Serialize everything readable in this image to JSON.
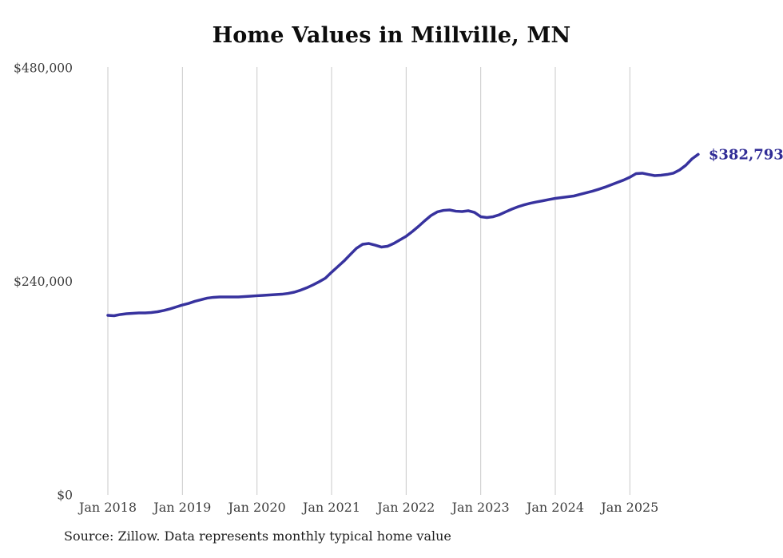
{
  "page": {
    "background": "#ffffff"
  },
  "chart": {
    "title": "Home Values in Millville, MN",
    "source": "Source: Zillow. Data represents monthly typical home value",
    "end_label": "$382,793"
  },
  "chart_data": {
    "type": "line",
    "title": "Home Values in Millville, MN",
    "series_name": "Monthly typical home value",
    "xlabel": "",
    "ylabel": "",
    "ylim": [
      0,
      480000
    ],
    "grid": "vertical-only",
    "legend": "none",
    "line_color": "#37329e",
    "grid_color": "#c9c9c9",
    "axis_text_color": "#3d3d3d",
    "end_label": "$382,793",
    "end_label_color": "#312d96",
    "last_value": 382793,
    "yticks": [
      {
        "value": 0,
        "label": "$0"
      },
      {
        "value": 240000,
        "label": "$240,000"
      },
      {
        "value": 480000,
        "label": "$480,000"
      }
    ],
    "xticks": [
      {
        "month_index": 0,
        "label": "Jan 2018"
      },
      {
        "month_index": 12,
        "label": "Jan 2019"
      },
      {
        "month_index": 24,
        "label": "Jan 2020"
      },
      {
        "month_index": 36,
        "label": "Jan 2021"
      },
      {
        "month_index": 48,
        "label": "Jan 2022"
      },
      {
        "month_index": 60,
        "label": "Jan 2023"
      },
      {
        "month_index": 72,
        "label": "Jan 2024"
      },
      {
        "month_index": 84,
        "label": "Jan 2025"
      }
    ],
    "months": [
      "Jan 2018",
      "Feb 2018",
      "Mar 2018",
      "Apr 2018",
      "May 2018",
      "Jun 2018",
      "Jul 2018",
      "Aug 2018",
      "Sep 2018",
      "Oct 2018",
      "Nov 2018",
      "Dec 2018",
      "Jan 2019",
      "Feb 2019",
      "Mar 2019",
      "Apr 2019",
      "May 2019",
      "Jun 2019",
      "Jul 2019",
      "Aug 2019",
      "Sep 2019",
      "Oct 2019",
      "Nov 2019",
      "Dec 2019",
      "Jan 2020",
      "Feb 2020",
      "Mar 2020",
      "Apr 2020",
      "May 2020",
      "Jun 2020",
      "Jul 2020",
      "Aug 2020",
      "Sep 2020",
      "Oct 2020",
      "Nov 2020",
      "Dec 2020",
      "Jan 2021",
      "Feb 2021",
      "Mar 2021",
      "Apr 2021",
      "May 2021",
      "Jun 2021",
      "Jul 2021",
      "Aug 2021",
      "Sep 2021",
      "Oct 2021",
      "Nov 2021",
      "Dec 2021",
      "Jan 2022",
      "Feb 2022",
      "Mar 2022",
      "Apr 2022",
      "May 2022",
      "Jun 2022",
      "Jul 2022",
      "Aug 2022",
      "Sep 2022",
      "Oct 2022",
      "Nov 2022",
      "Dec 2022",
      "Jan 2023",
      "Feb 2023",
      "Mar 2023",
      "Apr 2023",
      "May 2023",
      "Jun 2023",
      "Jul 2023",
      "Aug 2023",
      "Sep 2023",
      "Oct 2023",
      "Nov 2023",
      "Dec 2023",
      "Jan 2024",
      "Feb 2024",
      "Mar 2024",
      "Apr 2024",
      "May 2024",
      "Jun 2024",
      "Jul 2024",
      "Aug 2024",
      "Sep 2024",
      "Oct 2024",
      "Nov 2024",
      "Dec 2024",
      "Jan 2025",
      "Feb 2025",
      "Mar 2025",
      "Apr 2025",
      "May 2025",
      "Jun 2025",
      "Jul 2025",
      "Aug 2025",
      "Sep 2025",
      "Oct 2025",
      "Nov 2025",
      "Dec 2025"
    ],
    "values": [
      201900,
      201400,
      202800,
      203700,
      204100,
      204600,
      204600,
      205000,
      205900,
      207300,
      209100,
      211300,
      213500,
      215300,
      217600,
      219400,
      221200,
      222100,
      222500,
      222500,
      222500,
      222500,
      223000,
      223400,
      223900,
      224300,
      224700,
      225200,
      225600,
      226500,
      227900,
      230100,
      232800,
      236000,
      239600,
      243600,
      250300,
      256600,
      262900,
      270100,
      277200,
      281700,
      282600,
      280800,
      278600,
      279500,
      282600,
      286700,
      290700,
      296100,
      301900,
      308200,
      314000,
      318100,
      319800,
      320300,
      318900,
      318500,
      319400,
      317600,
      312700,
      311800,
      312700,
      314900,
      318100,
      321200,
      323900,
      326100,
      327900,
      329300,
      330600,
      332000,
      333300,
      334200,
      335100,
      336000,
      337800,
      339600,
      341400,
      343600,
      345900,
      348600,
      351300,
      353900,
      357100,
      361100,
      361600,
      360200,
      358900,
      359300,
      360200,
      361600,
      365200,
      370500,
      377700,
      382793
    ]
  }
}
